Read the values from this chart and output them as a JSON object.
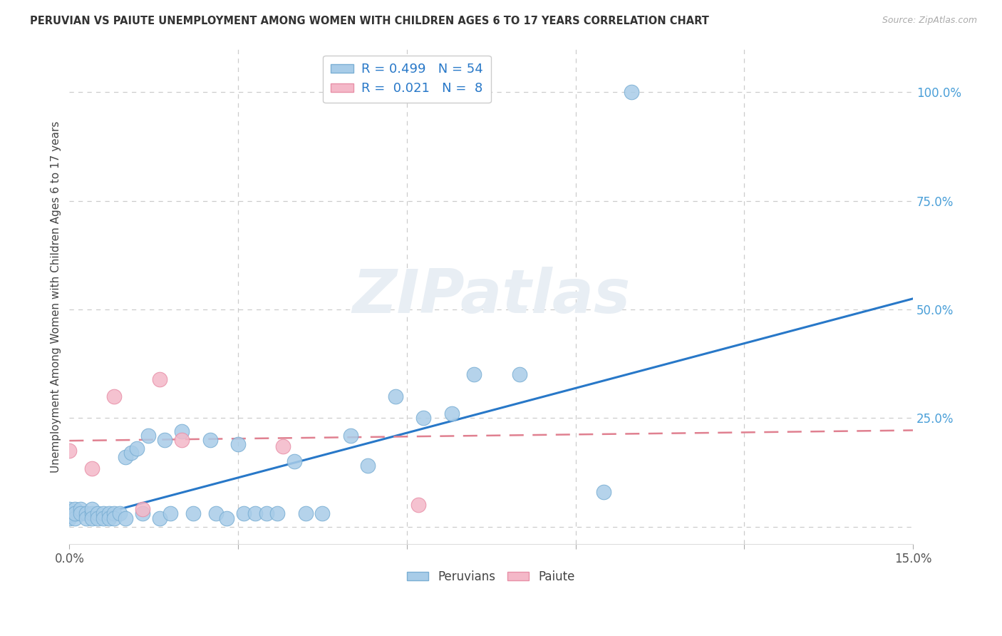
{
  "title": "PERUVIAN VS PAIUTE UNEMPLOYMENT AMONG WOMEN WITH CHILDREN AGES 6 TO 17 YEARS CORRELATION CHART",
  "source": "Source: ZipAtlas.com",
  "ylabel": "Unemployment Among Women with Children Ages 6 to 17 years",
  "xlim": [
    0.0,
    0.15
  ],
  "ylim": [
    -0.04,
    1.1
  ],
  "yticks_right": [
    0.25,
    0.5,
    0.75,
    1.0
  ],
  "yticklabels_right": [
    "25.0%",
    "50.0%",
    "75.0%",
    "100.0%"
  ],
  "peruvian_color": "#a8cce8",
  "peruvian_edge_color": "#7bafd4",
  "paiute_color": "#f4b8c8",
  "paiute_edge_color": "#e890a8",
  "trend_peruvian_color": "#2878c8",
  "trend_paiute_color": "#e08090",
  "grid_color": "#cccccc",
  "background_color": "#ffffff",
  "watermark_color": "#e8eef4",
  "legend_R_peruvian": "0.499",
  "legend_N_peruvian": "54",
  "legend_R_paiute": "0.021",
  "legend_N_paiute": "8",
  "trend_blue_x0": 0.0,
  "trend_blue_y0": 0.01,
  "trend_blue_x1": 0.15,
  "trend_blue_y1": 0.525,
  "trend_pink_x0": 0.0,
  "trend_pink_y0": 0.198,
  "trend_pink_x1": 0.15,
  "trend_pink_y1": 0.222,
  "peruvian_pts_x": [
    0.0,
    0.0,
    0.0,
    0.001,
    0.001,
    0.001,
    0.001,
    0.002,
    0.002,
    0.003,
    0.003,
    0.004,
    0.004,
    0.004,
    0.005,
    0.005,
    0.006,
    0.006,
    0.007,
    0.007,
    0.008,
    0.008,
    0.009,
    0.01,
    0.01,
    0.011,
    0.012,
    0.013,
    0.014,
    0.016,
    0.017,
    0.018,
    0.02,
    0.022,
    0.025,
    0.026,
    0.028,
    0.03,
    0.031,
    0.033,
    0.035,
    0.037,
    0.04,
    0.042,
    0.045,
    0.05,
    0.053,
    0.058,
    0.063,
    0.068,
    0.072,
    0.08,
    0.095,
    0.1
  ],
  "peruvian_pts_y": [
    0.03,
    0.04,
    0.02,
    0.03,
    0.04,
    0.02,
    0.03,
    0.04,
    0.03,
    0.03,
    0.02,
    0.03,
    0.04,
    0.02,
    0.03,
    0.02,
    0.03,
    0.02,
    0.03,
    0.02,
    0.03,
    0.02,
    0.03,
    0.02,
    0.16,
    0.17,
    0.18,
    0.03,
    0.21,
    0.02,
    0.2,
    0.03,
    0.22,
    0.03,
    0.2,
    0.03,
    0.02,
    0.19,
    0.03,
    0.03,
    0.03,
    0.03,
    0.15,
    0.03,
    0.03,
    0.21,
    0.14,
    0.3,
    0.25,
    0.26,
    0.35,
    0.35,
    0.08,
    1.0
  ],
  "paiute_pts_x": [
    0.0,
    0.004,
    0.008,
    0.013,
    0.016,
    0.02,
    0.038,
    0.062
  ],
  "paiute_pts_y": [
    0.175,
    0.135,
    0.3,
    0.04,
    0.34,
    0.2,
    0.185,
    0.05
  ]
}
